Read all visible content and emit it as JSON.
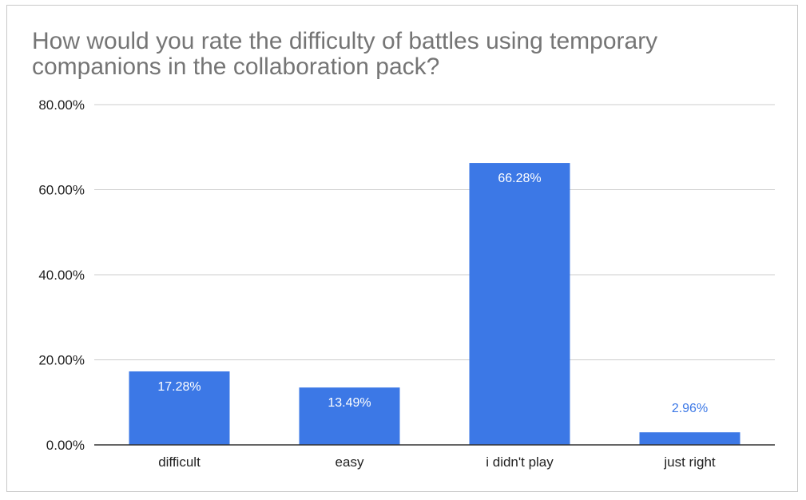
{
  "chart_data": {
    "type": "bar",
    "title": "How would you rate the difficulty of battles using temporary companions in the collaboration pack?",
    "categories": [
      "difficult",
      "easy",
      "i didn't play",
      "just right"
    ],
    "values": [
      17.28,
      13.49,
      66.28,
      2.96
    ],
    "data_labels": [
      "17.28%",
      "13.49%",
      "66.28%",
      "2.96%"
    ],
    "ylim": [
      0,
      80
    ],
    "yticks": [
      0,
      20,
      40,
      60,
      80
    ],
    "ytick_labels": [
      "0.00%",
      "20.00%",
      "40.00%",
      "60.00%",
      "80.00%"
    ],
    "xlabel": "",
    "ylabel": "",
    "grid": true,
    "legend": "none",
    "colors": {
      "bar": "#3c78e6",
      "label_inside": "#ffffff",
      "label_outside": "#3c78e6",
      "grid": "#cccccc",
      "axis": "#333333",
      "title": "#757575"
    }
  }
}
